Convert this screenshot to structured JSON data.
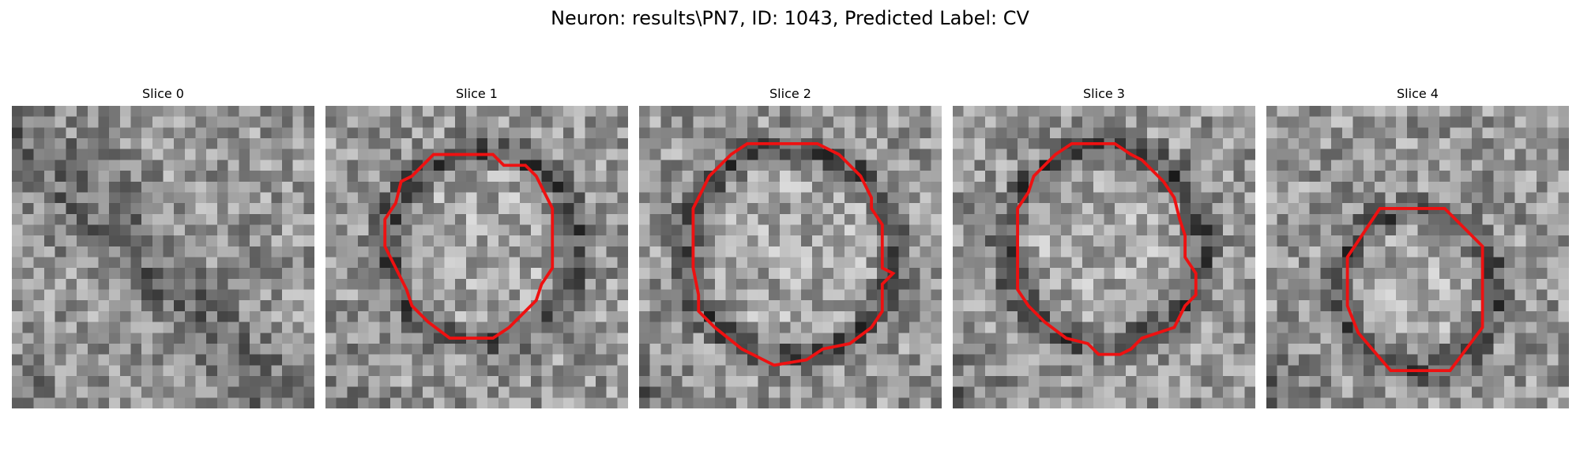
{
  "figure": {
    "title": "Neuron: results\\PN7, ID: 1043, Predicted Label: CV"
  },
  "colors": {
    "contour": "#ee1111",
    "colormap": "grayscale"
  },
  "panels": [
    {
      "label": "Slice 0",
      "has_contour": false,
      "seed": 11
    },
    {
      "label": "Slice 1",
      "has_contour": true,
      "seed": 23
    },
    {
      "label": "Slice 2",
      "has_contour": true,
      "seed": 37
    },
    {
      "label": "Slice 3",
      "has_contour": true,
      "seed": 51
    },
    {
      "label": "Slice 4",
      "has_contour": true,
      "seed": 73
    }
  ]
}
